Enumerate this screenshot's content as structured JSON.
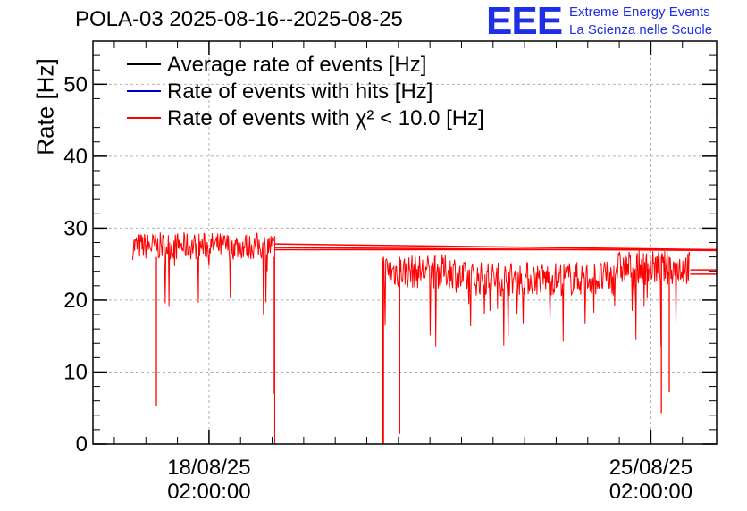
{
  "header": {
    "title": "POLA-03 2025-08-16--2025-08-25",
    "logo_mark": "EEE",
    "logo_line1": "Extreme Energy Events",
    "logo_line2": "La Scienza nelle Scuole"
  },
  "colors": {
    "average": "#000000",
    "hits": "#0000cc",
    "chi2": "#ff0000",
    "grid": "#b0b0b0",
    "logo": "#1f2fe6"
  },
  "chart_data": {
    "type": "line",
    "title": "POLA-03 2025-08-16--2025-08-25",
    "xlabel": "",
    "ylabel": "Rate [Hz]",
    "ylim": [
      0,
      56
    ],
    "xlim": [
      "2025-08-16T05:52",
      "2025-08-26T03:00"
    ],
    "grid": true,
    "legend_position": "top-left",
    "x_ticks": [
      {
        "line1": "18/08/25",
        "line2": "02:00:00",
        "x": "2025-08-18T02:00"
      },
      {
        "line1": "25/08/25",
        "line2": "02:00:00",
        "x": "2025-08-25T02:00"
      }
    ],
    "y_ticks": [
      0,
      10,
      20,
      30,
      40,
      50
    ],
    "series": [
      {
        "name": "Average rate of events [Hz]",
        "color": "#000000"
      },
      {
        "name": "Rate of events with hits [Hz]",
        "color": "#0000cc"
      },
      {
        "name": "Rate of events with χ² < 10.0 [Hz]",
        "color": "#ff0000",
        "segments": [
          {
            "from": "2025-08-16T21:00",
            "to": "2025-08-19T03:00",
            "level": 27.5,
            "noise": 1.2
          },
          {
            "from": "2025-08-19T03:00",
            "to": "2025-08-20T20:00",
            "level": 0
          },
          {
            "from": "2025-08-20T20:00",
            "to": "2025-08-22T00:00",
            "level": 24.0,
            "noise": 1.5
          },
          {
            "from": "2025-08-22T00:00",
            "to": "2025-08-24T12:00",
            "level": 23.0,
            "noise": 1.5
          },
          {
            "from": "2025-08-24T12:00",
            "to": "2025-08-25T17:00",
            "level": 24.5,
            "noise": 1.5
          }
        ],
        "dips": [
          {
            "x": "2025-08-17T06:00",
            "y": 5.3
          },
          {
            "x": "2025-08-19T02:30",
            "y": 7.0
          },
          {
            "x": "2025-08-20T20:20",
            "y": 0.0
          },
          {
            "x": "2025-08-21T02:30",
            "y": 1.4
          },
          {
            "x": "2025-08-25T06:00",
            "y": 4.3
          },
          {
            "x": "2025-08-25T09:00",
            "y": 7.2
          }
        ]
      }
    ]
  }
}
